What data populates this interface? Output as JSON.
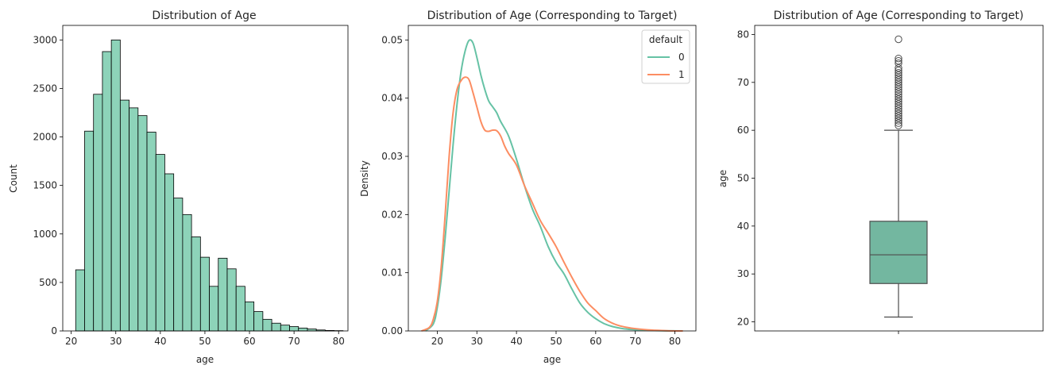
{
  "colors": {
    "series0": "#66c2a5",
    "series1": "#fc8d62",
    "hist_fill": "#8dd3b9",
    "box_fill": "#73b7a0",
    "edge": "#000000",
    "box_edge": "#4d4d4d"
  },
  "chart_data": [
    {
      "type": "bar",
      "subtype": "histogram",
      "title": "Distribution of Age",
      "xlabel": "age",
      "ylabel": "Count",
      "xlim": [
        18.1,
        82.1
      ],
      "ylim": [
        0,
        3150
      ],
      "xticks": [
        20,
        30,
        40,
        50,
        60,
        70,
        80
      ],
      "yticks": [
        0,
        500,
        1000,
        1500,
        2000,
        2500,
        3000
      ],
      "bin_start": 21,
      "bin_width": 2,
      "values": [
        630,
        2060,
        2440,
        2880,
        3000,
        2380,
        2300,
        2220,
        2050,
        1820,
        1620,
        1370,
        1200,
        970,
        760,
        460,
        750,
        640,
        460,
        300,
        200,
        120,
        80,
        60,
        45,
        30,
        20,
        10,
        5,
        3
      ]
    },
    {
      "type": "line",
      "subtype": "kde",
      "title": "Distribution of Age (Corresponding to Target)",
      "xlabel": "age",
      "ylabel": "Density",
      "xlim": [
        12.7,
        85.3
      ],
      "ylim": [
        0,
        0.0525
      ],
      "xticks": [
        20,
        30,
        40,
        50,
        60,
        70,
        80
      ],
      "yticks": [
        0.0,
        0.01,
        0.02,
        0.03,
        0.04,
        0.05
      ],
      "legend": {
        "title": "default",
        "position": "top-right"
      },
      "series": [
        {
          "name": "0",
          "x": [
            17,
            19,
            20,
            21,
            22,
            23,
            24,
            25,
            26,
            27,
            28,
            29,
            30,
            31,
            32,
            33,
            34,
            35,
            36,
            38,
            40,
            42,
            44,
            46,
            48,
            50,
            52,
            54,
            56,
            58,
            60,
            62,
            64,
            66,
            68,
            70,
            74,
            78,
            82
          ],
          "y": [
            0.0,
            0.0012,
            0.004,
            0.009,
            0.016,
            0.024,
            0.032,
            0.039,
            0.0445,
            0.048,
            0.0499,
            0.0495,
            0.047,
            0.044,
            0.0415,
            0.0395,
            0.0385,
            0.0375,
            0.036,
            0.0335,
            0.0295,
            0.025,
            0.021,
            0.018,
            0.0145,
            0.0118,
            0.0098,
            0.0072,
            0.0048,
            0.0032,
            0.0021,
            0.0013,
            0.0008,
            0.0005,
            0.0003,
            0.0002,
            8e-05,
            2e-05,
            0.0
          ]
        },
        {
          "name": "1",
          "x": [
            16,
            18,
            19,
            20,
            21,
            22,
            23,
            24,
            25,
            26,
            27,
            28,
            29,
            30,
            31,
            32,
            33,
            34,
            35,
            36,
            37,
            38,
            40,
            42,
            44,
            46,
            48,
            50,
            52,
            54,
            56,
            58,
            60,
            62,
            64,
            66,
            68,
            70,
            74,
            78,
            82
          ],
          "y": [
            0.0,
            0.0006,
            0.002,
            0.005,
            0.011,
            0.02,
            0.03,
            0.0375,
            0.0415,
            0.043,
            0.0436,
            0.0432,
            0.041,
            0.0385,
            0.036,
            0.0345,
            0.0343,
            0.0345,
            0.0344,
            0.0335,
            0.0318,
            0.0305,
            0.0285,
            0.025,
            0.022,
            0.019,
            0.0168,
            0.0145,
            0.0118,
            0.0092,
            0.0068,
            0.0048,
            0.0035,
            0.0022,
            0.0014,
            0.0009,
            0.0006,
            0.0004,
            0.00015,
            4e-05,
            0.0
          ]
        }
      ]
    },
    {
      "type": "box",
      "title": "Distribution of Age (Corresponding to Target)",
      "xlabel": "",
      "ylabel": "age",
      "ylim": [
        18.1,
        81.9
      ],
      "yticks": [
        20,
        30,
        40,
        50,
        60,
        70,
        80
      ],
      "box": {
        "whislo": 21,
        "q1": 28,
        "med": 34,
        "q3": 41,
        "whishi": 60
      },
      "outliers": [
        61,
        61.5,
        62,
        62.5,
        63,
        63.5,
        64,
        64.5,
        65,
        65.5,
        66,
        66.5,
        67,
        67.5,
        68,
        68.5,
        69,
        69.5,
        70,
        70.5,
        71,
        71.5,
        72,
        72.5,
        73,
        74,
        74.5,
        75,
        79
      ]
    }
  ]
}
